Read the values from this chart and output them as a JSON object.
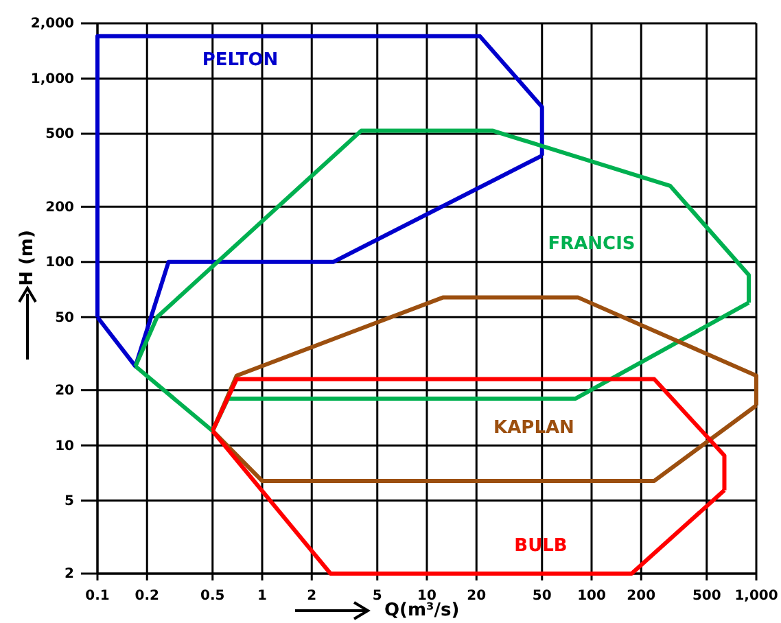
{
  "chart_data": {
    "type": "line",
    "xlabel": "Q(m³/s)",
    "ylabel": "H (m)",
    "log": "xy",
    "grid": true,
    "marker": "none",
    "line_style": "solid",
    "xlim": [
      0.1,
      1000
    ],
    "ylim": [
      2,
      2000
    ],
    "xticks": [
      0.1,
      0.2,
      0.5,
      1,
      2,
      5,
      10,
      20,
      50,
      100,
      200,
      500,
      {
        "value": 1000,
        "label": "1,000"
      }
    ],
    "yticks": [
      2,
      5,
      10,
      20,
      50,
      100,
      200,
      500,
      {
        "value": 1000,
        "label": "1,000"
      },
      {
        "value": 2000,
        "label": "2,000"
      }
    ],
    "series": [
      {
        "name": "PELTON",
        "color": "#0000cc",
        "x": [
          0.1,
          0.1,
          21,
          50,
          50
        ],
        "values": [
          50,
          1700,
          1700,
          700,
          380
        ]
      },
      {
        "color": "#0000cc",
        "x": [
          0.1,
          0.17,
          0.27,
          2.7,
          50
        ],
        "values": [
          50,
          27,
          100,
          100,
          380
        ]
      },
      {
        "name": "FRANCIS",
        "color": "#00b050",
        "x": [
          0.17,
          0.23,
          4,
          25,
          300,
          900,
          900
        ],
        "values": [
          27,
          50,
          520,
          520,
          260,
          85,
          60
        ]
      },
      {
        "color": "#00b050",
        "x": [
          0.17,
          0.5,
          0.62,
          80,
          900
        ],
        "values": [
          27,
          12,
          18,
          18,
          60
        ]
      },
      {
        "name": "KAPLAN",
        "color": "#9c4f0f",
        "x": [
          0.5,
          0.7,
          12.5,
          83,
          1000,
          1000
        ],
        "values": [
          12,
          24,
          64,
          64,
          24,
          16.5
        ]
      },
      {
        "color": "#9c4f0f",
        "x": [
          0.5,
          1,
          240,
          1000
        ],
        "values": [
          12,
          6.4,
          6.4,
          16.5
        ]
      },
      {
        "name": "BULB",
        "color": "#ff0000",
        "x": [
          0.5,
          0.7,
          240,
          640,
          640
        ],
        "values": [
          12,
          23,
          23,
          8.8,
          5.7
        ]
      },
      {
        "color": "#ff0000",
        "x": [
          0.5,
          2.6,
          175,
          640
        ],
        "values": [
          12,
          2,
          2,
          5.7
        ]
      }
    ]
  }
}
